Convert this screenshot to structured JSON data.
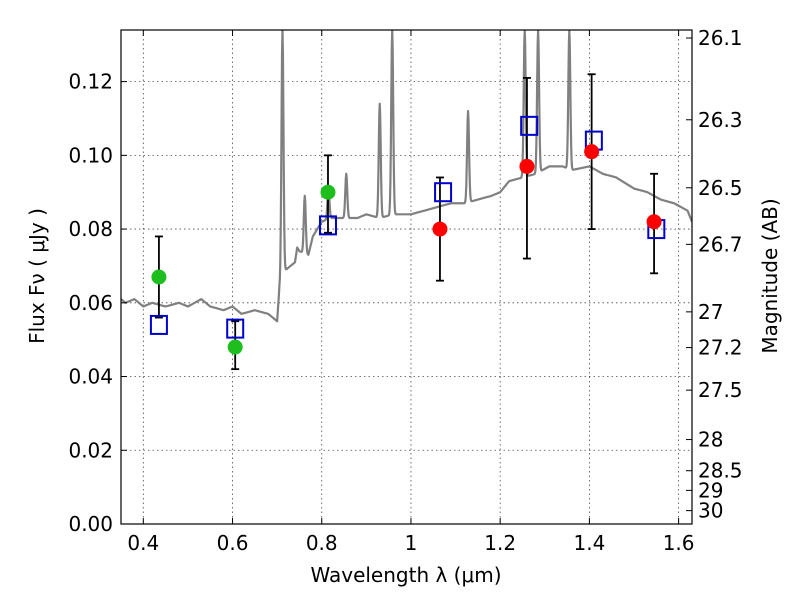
{
  "chart_data": {
    "type": "scatter",
    "xlabel": "Wavelength  λ (μm)",
    "ylabel": "Flux  Fν  ( μJy )",
    "y2label": "Magnitude (AB)",
    "xlim": [
      0.35,
      1.63
    ],
    "ylim": [
      0.0,
      0.134
    ],
    "grid": true,
    "x_ticks": [
      {
        "value": 0.4,
        "label": "0.4"
      },
      {
        "value": 0.6,
        "label": "0.6"
      },
      {
        "value": 0.8,
        "label": "0.8"
      },
      {
        "value": 1.0,
        "label": "1"
      },
      {
        "value": 1.2,
        "label": "1.2"
      },
      {
        "value": 1.4,
        "label": "1.4"
      },
      {
        "value": 1.6,
        "label": "1.6"
      }
    ],
    "y_ticks": [
      {
        "value": 0.0,
        "label": "0.00"
      },
      {
        "value": 0.02,
        "label": "0.02"
      },
      {
        "value": 0.04,
        "label": "0.04"
      },
      {
        "value": 0.06,
        "label": "0.06"
      },
      {
        "value": 0.08,
        "label": "0.08"
      },
      {
        "value": 0.1,
        "label": "0.10"
      },
      {
        "value": 0.12,
        "label": "0.12"
      }
    ],
    "y2_ticks": [
      {
        "label": "26.1",
        "mag": 26.1
      },
      {
        "label": "26.3",
        "mag": 26.3
      },
      {
        "label": "26.5",
        "mag": 26.5
      },
      {
        "label": "26.7",
        "mag": 26.7
      },
      {
        "label": "27",
        "mag": 27.0
      },
      {
        "label": "27.2",
        "mag": 27.2
      },
      {
        "label": "27.5",
        "mag": 27.5
      },
      {
        "label": "28",
        "mag": 28.0
      },
      {
        "label": "28.5",
        "mag": 28.5
      },
      {
        "label": "29",
        "mag": 29.0
      },
      {
        "label": "30",
        "mag": 30.0
      }
    ],
    "observed_points": [
      {
        "x": 0.435,
        "y": 0.067,
        "yerr_low": 0.056,
        "yerr_high": 0.078,
        "color": "#1fbe1f"
      },
      {
        "x": 0.606,
        "y": 0.048,
        "yerr_low": 0.042,
        "yerr_high": 0.055,
        "color": "#1fbe1f"
      },
      {
        "x": 0.814,
        "y": 0.09,
        "yerr_low": 0.079,
        "yerr_high": 0.1,
        "color": "#1fbe1f"
      },
      {
        "x": 1.065,
        "y": 0.08,
        "yerr_low": 0.066,
        "yerr_high": 0.094,
        "color": "#ff0000"
      },
      {
        "x": 1.26,
        "y": 0.097,
        "yerr_low": 0.072,
        "yerr_high": 0.121,
        "color": "#ff0000"
      },
      {
        "x": 1.405,
        "y": 0.101,
        "yerr_low": 0.08,
        "yerr_high": 0.122,
        "color": "#ff0000"
      },
      {
        "x": 1.545,
        "y": 0.082,
        "yerr_low": 0.068,
        "yerr_high": 0.095,
        "color": "#ff0000"
      }
    ],
    "model_points": [
      {
        "x": 0.435,
        "y": 0.054
      },
      {
        "x": 0.606,
        "y": 0.053
      },
      {
        "x": 0.814,
        "y": 0.081
      },
      {
        "x": 1.072,
        "y": 0.09
      },
      {
        "x": 1.265,
        "y": 0.108
      },
      {
        "x": 1.41,
        "y": 0.104
      },
      {
        "x": 1.55,
        "y": 0.08
      }
    ],
    "spectrum": {
      "color": "#808080",
      "continuum": [
        [
          0.35,
          0.061
        ],
        [
          0.36,
          0.06
        ],
        [
          0.38,
          0.061
        ],
        [
          0.4,
          0.059
        ],
        [
          0.42,
          0.06
        ],
        [
          0.45,
          0.059
        ],
        [
          0.48,
          0.06
        ],
        [
          0.5,
          0.059
        ],
        [
          0.53,
          0.061
        ],
        [
          0.55,
          0.059
        ],
        [
          0.58,
          0.058
        ],
        [
          0.6,
          0.059
        ],
        [
          0.62,
          0.057
        ],
        [
          0.65,
          0.058
        ],
        [
          0.68,
          0.057
        ],
        [
          0.7,
          0.055
        ],
        [
          0.705,
          0.064
        ],
        [
          0.71,
          0.068
        ],
        [
          0.72,
          0.069
        ],
        [
          0.73,
          0.07
        ],
        [
          0.74,
          0.071
        ],
        [
          0.745,
          0.075
        ],
        [
          0.75,
          0.074
        ],
        [
          0.77,
          0.073
        ],
        [
          0.78,
          0.078
        ],
        [
          0.79,
          0.08
        ],
        [
          0.8,
          0.082
        ],
        [
          0.82,
          0.083
        ],
        [
          0.85,
          0.083
        ],
        [
          0.88,
          0.083
        ],
        [
          0.9,
          0.084
        ],
        [
          0.93,
          0.083
        ],
        [
          0.96,
          0.084
        ],
        [
          1.0,
          0.084
        ],
        [
          1.03,
          0.085
        ],
        [
          1.06,
          0.086
        ],
        [
          1.09,
          0.087
        ],
        [
          1.12,
          0.087
        ],
        [
          1.15,
          0.088
        ],
        [
          1.18,
          0.089
        ],
        [
          1.2,
          0.09
        ],
        [
          1.22,
          0.093
        ],
        [
          1.25,
          0.094
        ],
        [
          1.28,
          0.095
        ],
        [
          1.31,
          0.097
        ],
        [
          1.34,
          0.097
        ],
        [
          1.36,
          0.096
        ],
        [
          1.4,
          0.097
        ],
        [
          1.43,
          0.095
        ],
        [
          1.46,
          0.094
        ],
        [
          1.5,
          0.091
        ],
        [
          1.53,
          0.09
        ],
        [
          1.56,
          0.088
        ],
        [
          1.59,
          0.087
        ],
        [
          1.62,
          0.085
        ],
        [
          1.63,
          0.082
        ]
      ],
      "emission_lines": [
        {
          "x": 0.712,
          "peak": 0.134
        },
        {
          "x": 0.762,
          "peak": 0.089
        },
        {
          "x": 0.815,
          "peak": 0.091
        },
        {
          "x": 0.855,
          "peak": 0.095
        },
        {
          "x": 0.93,
          "peak": 0.114
        },
        {
          "x": 0.958,
          "peak": 0.134
        },
        {
          "x": 1.128,
          "peak": 0.112
        },
        {
          "x": 1.255,
          "peak": 0.134
        },
        {
          "x": 1.285,
          "peak": 0.134
        },
        {
          "x": 1.355,
          "peak": 0.134
        }
      ]
    }
  }
}
